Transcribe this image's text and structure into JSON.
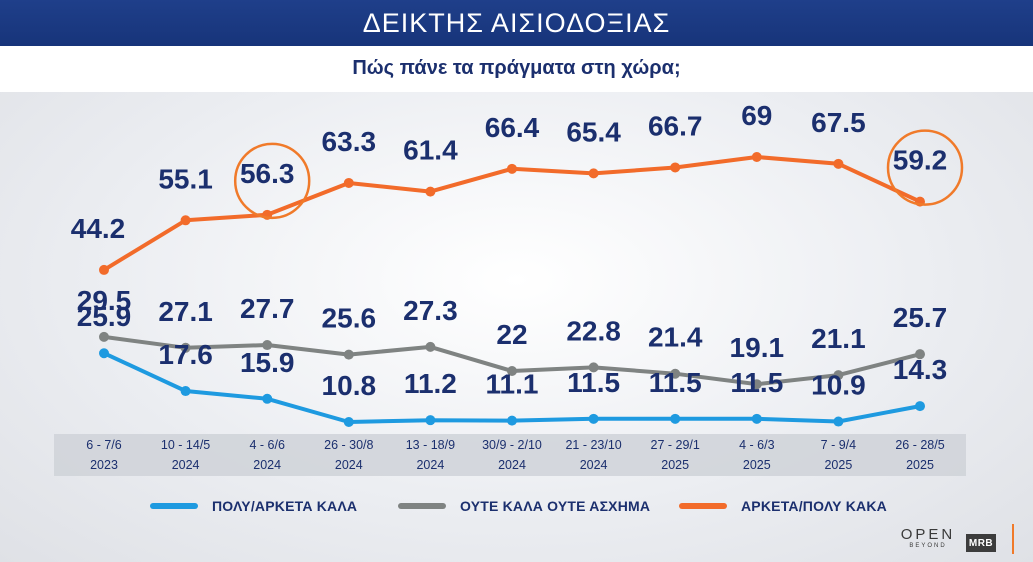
{
  "header": {
    "title": "ΔΕΙΚΤΗΣ ΑΙΣΙΟΔΟΞΙΑΣ",
    "subtitle": "Πώς πάνε τα πράγματα στη χώρα;"
  },
  "colors": {
    "header_bg": "#1f3f8a",
    "label_text": "#1b2f6e",
    "highlight_circle": "#f07a2a",
    "axis_strip": "#cfd2d8"
  },
  "chart_data": {
    "type": "line",
    "categories": [
      {
        "dates": "6 - 7/6",
        "year": "2023"
      },
      {
        "dates": "10 - 14/5",
        "year": "2024"
      },
      {
        "dates": "4 - 6/6",
        "year": "2024"
      },
      {
        "dates": "26 - 30/8",
        "year": "2024"
      },
      {
        "dates": "13 - 18/9",
        "year": "2024"
      },
      {
        "dates": "30/9 - 2/10",
        "year": "2024"
      },
      {
        "dates": "21 - 23/10",
        "year": "2024"
      },
      {
        "dates": "27 - 29/1",
        "year": "2025"
      },
      {
        "dates": "4 - 6/3",
        "year": "2025"
      },
      {
        "dates": "7 - 9/4",
        "year": "2025"
      },
      {
        "dates": "26 - 28/5",
        "year": "2025"
      }
    ],
    "series": [
      {
        "name": "ΑΡΚΕΤΑ/ΠΟΛΥ ΚΑΚΑ",
        "color": "#f26b2a",
        "values": [
          44.2,
          55.1,
          56.3,
          63.3,
          61.4,
          66.4,
          65.4,
          66.7,
          69,
          67.5,
          59.2
        ],
        "labels": [
          "44.2",
          "55.1",
          "56.3",
          "63.3",
          "61.4",
          "66.4",
          "65.4",
          "66.7",
          "69",
          "67.5",
          "59.2"
        ]
      },
      {
        "name": "ΟΥΤΕ ΚΑΛΑ ΟΥΤΕ ΑΣΧΗΜΑ",
        "color": "#7f8382",
        "values": [
          29.5,
          27.1,
          27.7,
          25.6,
          27.3,
          22,
          22.8,
          21.4,
          19.1,
          21.1,
          25.7
        ],
        "labels": [
          "29.5",
          "27.1",
          "27.7",
          "25.6",
          "27.3",
          "22",
          "22.8",
          "21.4",
          "19.1",
          "21.1",
          "25.7"
        ]
      },
      {
        "name": "ΠΟΛΥ/ΑΡΚΕΤΑ ΚΑΛΑ",
        "color": "#1e9ae0",
        "values": [
          25.9,
          17.6,
          15.9,
          10.8,
          11.2,
          11.1,
          11.5,
          11.5,
          11.5,
          10.9,
          14.3
        ],
        "labels": [
          "25.9",
          "17.6",
          "15.9",
          "10.8",
          "11.2",
          "11.1",
          "11.5",
          "11.5",
          "11.5",
          "10.9",
          "14.3"
        ]
      }
    ],
    "highlighted_points": [
      {
        "series": 0,
        "index": 2
      },
      {
        "series": 0,
        "index": 10
      }
    ],
    "legend_position": "bottom",
    "grid": false
  },
  "legend": [
    {
      "label": "ΠΟΛΥ/ΑΡΚΕΤΑ ΚΑΛΑ",
      "color": "#1e9ae0"
    },
    {
      "label": "ΟΥΤΕ ΚΑΛΑ ΟΥΤΕ ΑΣΧΗΜΑ",
      "color": "#7f8382"
    },
    {
      "label": "ΑΡΚΕΤΑ/ΠΟΛΥ ΚΑΚΑ",
      "color": "#f26b2a"
    }
  ],
  "branding": {
    "open": "OPEN",
    "open_sub": "BEYOND",
    "mrb": "MRB"
  }
}
